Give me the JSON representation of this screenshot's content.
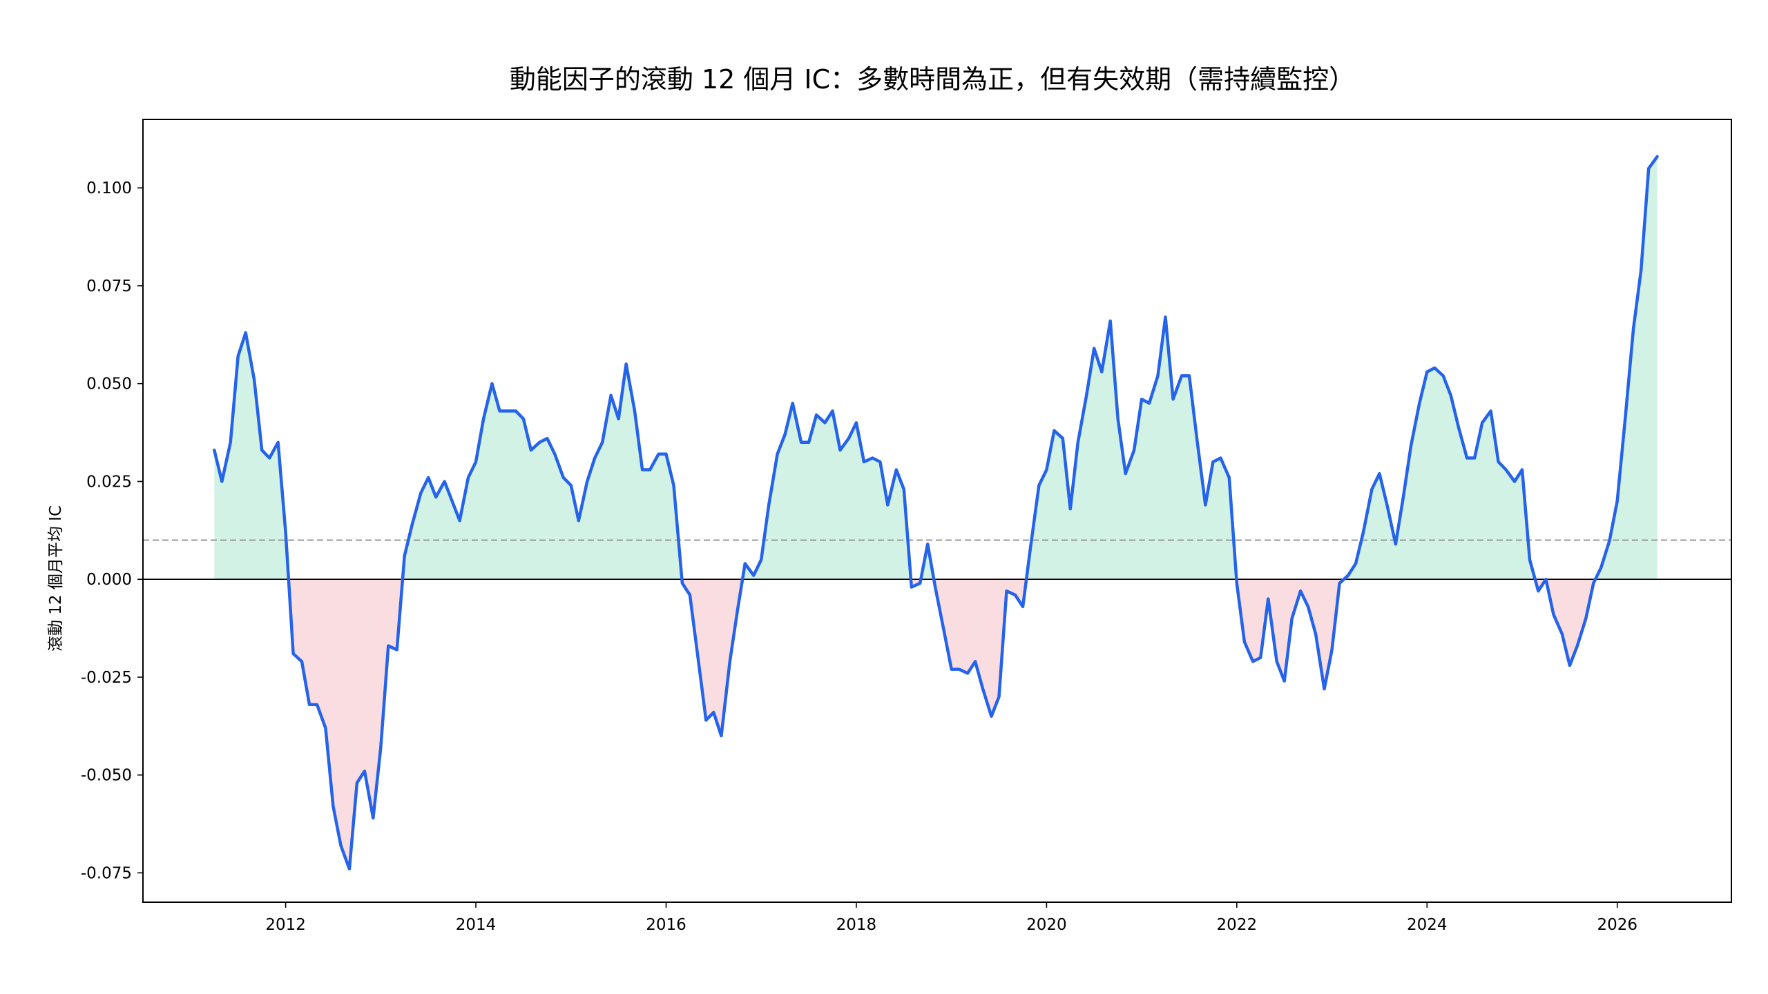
{
  "chart_data": {
    "type": "line",
    "title": "動能因子的滾動 12 個月 IC：多數時間為正，但有失效期（需持續監控）",
    "xlabel": "",
    "ylabel": "滾動 12 個月平均 IC",
    "xlim": [
      2010.5,
      2027.2
    ],
    "ylim": [
      -0.0825,
      0.1175
    ],
    "x_ticks": [
      2012,
      2014,
      2016,
      2018,
      2020,
      2022,
      2024,
      2026
    ],
    "y_ticks": [
      -0.075,
      -0.05,
      -0.025,
      0.0,
      0.025,
      0.05,
      0.075,
      0.1
    ],
    "y_tick_labels": [
      "-0.075",
      "-0.050",
      "-0.025",
      "0.000",
      "0.025",
      "0.050",
      "0.075",
      "0.100"
    ],
    "reference_lines": [
      {
        "y": 0.0,
        "style": "solid",
        "color": "#000000"
      },
      {
        "y": 0.01,
        "style": "dashed",
        "color": "#999999"
      }
    ],
    "fill": {
      "positive_color": "#d2f2e6",
      "negative_color": "#fadde1"
    },
    "grid": false,
    "series": [
      {
        "color": "#2563eb",
        "x": [
          2011.25,
          2011.33,
          2011.42,
          2011.5,
          2011.58,
          2011.67,
          2011.75,
          2011.83,
          2011.92,
          2012.0,
          2012.08,
          2012.17,
          2012.25,
          2012.33,
          2012.42,
          2012.5,
          2012.58,
          2012.67,
          2012.75,
          2012.83,
          2012.92,
          2013.0,
          2013.08,
          2013.17,
          2013.25,
          2013.33,
          2013.42,
          2013.5,
          2013.58,
          2013.67,
          2013.75,
          2013.83,
          2013.92,
          2014.0,
          2014.08,
          2014.17,
          2014.25,
          2014.33,
          2014.42,
          2014.5,
          2014.58,
          2014.67,
          2014.75,
          2014.83,
          2014.92,
          2015.0,
          2015.08,
          2015.17,
          2015.25,
          2015.33,
          2015.42,
          2015.5,
          2015.58,
          2015.67,
          2015.75,
          2015.83,
          2015.92,
          2016.0,
          2016.08,
          2016.17,
          2016.25,
          2016.33,
          2016.42,
          2016.5,
          2016.58,
          2016.67,
          2016.75,
          2016.83,
          2016.92,
          2017.0,
          2017.08,
          2017.17,
          2017.25,
          2017.33,
          2017.42,
          2017.5,
          2017.58,
          2017.67,
          2017.75,
          2017.83,
          2017.92,
          2018.0,
          2018.08,
          2018.17,
          2018.25,
          2018.33,
          2018.42,
          2018.5,
          2018.58,
          2018.67,
          2018.75,
          2018.83,
          2018.92,
          2019.0,
          2019.08,
          2019.17,
          2019.25,
          2019.33,
          2019.42,
          2019.5,
          2019.58,
          2019.67,
          2019.75,
          2019.83,
          2019.92,
          2020.0,
          2020.08,
          2020.17,
          2020.25,
          2020.33,
          2020.42,
          2020.5,
          2020.58,
          2020.67,
          2020.75,
          2020.83,
          2020.92,
          2021.0,
          2021.08,
          2021.17,
          2021.25,
          2021.33,
          2021.42,
          2021.5,
          2021.58,
          2021.67,
          2021.75,
          2021.83,
          2021.92,
          2022.0,
          2022.08,
          2022.17,
          2022.25,
          2022.33,
          2022.42,
          2022.5,
          2022.58,
          2022.67,
          2022.75,
          2022.83,
          2022.92,
          2023.0,
          2023.08,
          2023.17,
          2023.25,
          2023.33,
          2023.42,
          2023.5,
          2023.58,
          2023.67,
          2023.75,
          2023.83,
          2023.92,
          2024.0,
          2024.08,
          2024.17,
          2024.25,
          2024.33,
          2024.42,
          2024.5,
          2024.58,
          2024.67,
          2024.75,
          2024.83,
          2024.92,
          2025.0,
          2025.08,
          2025.17,
          2025.25,
          2025.33,
          2025.42,
          2025.5,
          2025.58,
          2025.67,
          2025.75,
          2025.83,
          2025.92,
          2026.0,
          2026.08,
          2026.17,
          2026.25,
          2026.33,
          2026.42
        ],
        "values": [
          0.033,
          0.025,
          0.035,
          0.057,
          0.063,
          0.051,
          0.033,
          0.031,
          0.035,
          0.012,
          -0.019,
          -0.021,
          -0.032,
          -0.032,
          -0.038,
          -0.058,
          -0.068,
          -0.074,
          -0.052,
          -0.049,
          -0.061,
          -0.043,
          -0.017,
          -0.018,
          0.006,
          0.014,
          0.022,
          0.026,
          0.021,
          0.025,
          0.02,
          0.015,
          0.026,
          0.03,
          0.041,
          0.05,
          0.043,
          0.043,
          0.043,
          0.041,
          0.033,
          0.035,
          0.036,
          0.032,
          0.026,
          0.024,
          0.015,
          0.025,
          0.031,
          0.035,
          0.047,
          0.041,
          0.055,
          0.043,
          0.028,
          0.028,
          0.032,
          0.032,
          0.024,
          -0.001,
          -0.004,
          -0.019,
          -0.036,
          -0.034,
          -0.04,
          -0.021,
          -0.008,
          0.004,
          0.001,
          0.005,
          0.019,
          0.032,
          0.037,
          0.045,
          0.035,
          0.035,
          0.042,
          0.04,
          0.043,
          0.033,
          0.036,
          0.04,
          0.03,
          0.031,
          0.03,
          0.019,
          0.028,
          0.023,
          -0.002,
          -0.001,
          0.009,
          -0.002,
          -0.013,
          -0.023,
          -0.023,
          -0.024,
          -0.021,
          -0.028,
          -0.035,
          -0.03,
          -0.003,
          -0.004,
          -0.007,
          0.008,
          0.024,
          0.028,
          0.038,
          0.036,
          0.018,
          0.035,
          0.047,
          0.059,
          0.053,
          0.066,
          0.041,
          0.027,
          0.033,
          0.046,
          0.045,
          0.052,
          0.067,
          0.046,
          0.052,
          0.052,
          0.036,
          0.019,
          0.03,
          0.031,
          0.026,
          -0.001,
          -0.016,
          -0.021,
          -0.02,
          -0.005,
          -0.021,
          -0.026,
          -0.01,
          -0.003,
          -0.007,
          -0.014,
          -0.028,
          -0.018,
          -0.001,
          0.001,
          0.004,
          0.012,
          0.023,
          0.027,
          0.019,
          0.009,
          0.021,
          0.034,
          0.045,
          0.053,
          0.054,
          0.052,
          0.047,
          0.039,
          0.031,
          0.031,
          0.04,
          0.043,
          0.03,
          0.028,
          0.025,
          0.028,
          0.005,
          -0.003,
          0.0,
          -0.009,
          -0.014,
          -0.022,
          -0.017,
          -0.01,
          -0.001,
          0.003,
          0.01,
          0.02,
          0.04,
          0.064,
          0.079,
          0.105,
          0.108
        ]
      }
    ]
  }
}
